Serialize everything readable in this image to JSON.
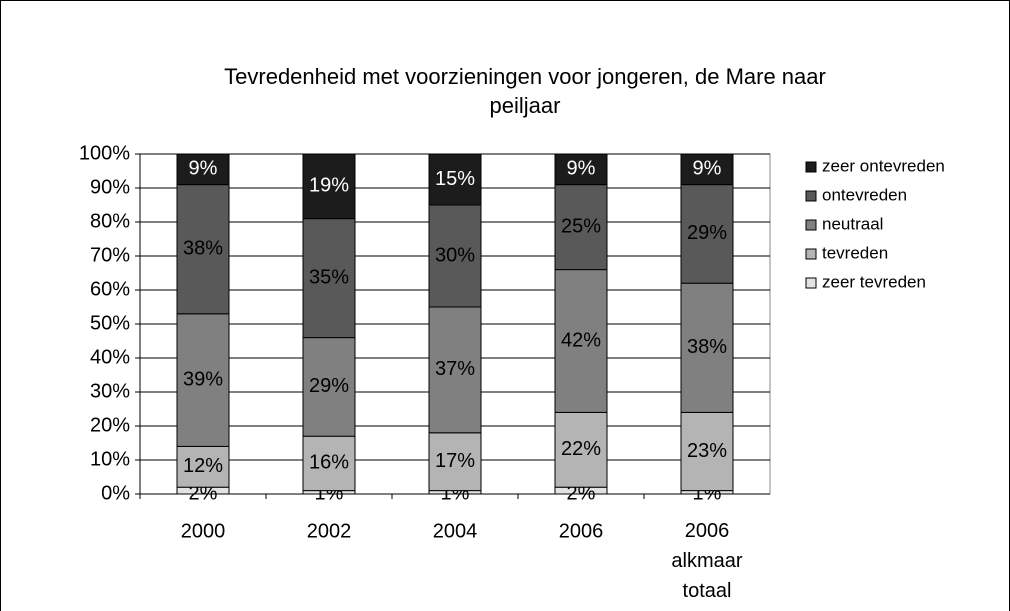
{
  "chart_data": {
    "type": "stacked_bar",
    "title": "Tevredenheid met voorzieningen voor jongeren, de Mare naar peiljaar",
    "categories": [
      "2000",
      "2002",
      "2004",
      "2006",
      "2006 alkmaar totaal"
    ],
    "series": [
      {
        "name": "zeer tevreden",
        "color": "#e3e3e3",
        "values": [
          2,
          1,
          1,
          2,
          1
        ],
        "value_labels": [
          "2%",
          "1%",
          "1%",
          "2%",
          "1%"
        ]
      },
      {
        "name": "tevreden",
        "color": "#b4b4b4",
        "values": [
          12,
          16,
          17,
          22,
          23
        ],
        "value_labels": [
          "12%",
          "16%",
          "17%",
          "22%",
          "23%"
        ]
      },
      {
        "name": "neutraal",
        "color": "#808080",
        "values": [
          39,
          29,
          37,
          42,
          38
        ],
        "value_labels": [
          "39%",
          "29%",
          "37%",
          "42%",
          "38%"
        ]
      },
      {
        "name": "ontevreden",
        "color": "#595959",
        "values": [
          38,
          35,
          30,
          25,
          29
        ],
        "value_labels": [
          "38%",
          "35%",
          "30%",
          "25%",
          "29%"
        ]
      },
      {
        "name": "zeer ontevreden",
        "color": "#1c1c1c",
        "values": [
          9,
          19,
          15,
          9,
          9
        ],
        "value_labels": [
          "9%",
          "19%",
          "15%",
          "9%",
          "9%"
        ]
      }
    ],
    "ylim": [
      0,
      100
    ],
    "yticks": [
      {
        "value": 0,
        "label": "0%"
      },
      {
        "value": 10,
        "label": "10%"
      },
      {
        "value": 20,
        "label": "20%"
      },
      {
        "value": 30,
        "label": "30%"
      },
      {
        "value": 40,
        "label": "40%"
      },
      {
        "value": 50,
        "label": "50%"
      },
      {
        "value": 60,
        "label": "60%"
      },
      {
        "value": 70,
        "label": "70%"
      },
      {
        "value": 80,
        "label": "80%"
      },
      {
        "value": 90,
        "label": "90%"
      },
      {
        "value": 100,
        "label": "100%"
      }
    ],
    "grid": true,
    "legend": "right"
  }
}
